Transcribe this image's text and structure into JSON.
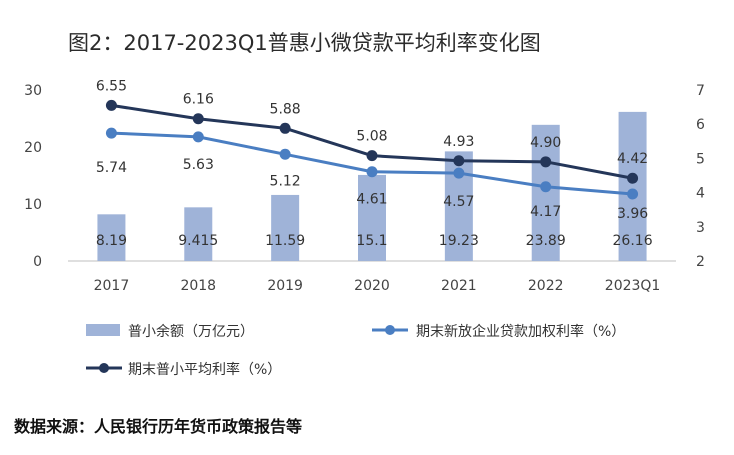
{
  "title": "图2：2017-2023Q1普惠小微贷款平均利率变化图",
  "source": "数据来源：人民银行历年货币政策报告等",
  "chart_data": {
    "type": "bar+line",
    "categories": [
      "2017",
      "2018",
      "2019",
      "2020",
      "2021",
      "2022",
      "2023Q1"
    ],
    "left_axis": {
      "ylim": [
        0,
        30
      ],
      "ticks": [
        "0",
        "10",
        "20",
        "30"
      ]
    },
    "right_axis": {
      "ylim": [
        2,
        7
      ],
      "ticks": [
        "2",
        "3",
        "4",
        "5",
        "6",
        "7"
      ]
    },
    "series": [
      {
        "name": "普小余额（万亿元）",
        "type": "bar",
        "axis": "left",
        "color": "#9fb3d8",
        "values": [
          8.19,
          9.415,
          11.59,
          15.1,
          19.23,
          23.89,
          26.16
        ],
        "labels": [
          "8.19",
          "9.415",
          "11.59",
          "15.1",
          "19.23",
          "23.89",
          "26.16"
        ]
      },
      {
        "name": "期末新放企业贷款加权利率（%）",
        "type": "line",
        "axis": "right",
        "color": "#4a7ec2",
        "values": [
          5.74,
          5.63,
          5.12,
          4.61,
          4.57,
          4.17,
          3.96
        ],
        "labels": [
          "5.74",
          "5.63",
          "5.12",
          "4.61",
          "4.57",
          "4.17",
          "3.96"
        ]
      },
      {
        "name": "期末普小平均利率（%）",
        "type": "line",
        "axis": "right",
        "color": "#243659",
        "values": [
          6.55,
          6.16,
          5.88,
          5.08,
          4.93,
          4.9,
          4.42
        ],
        "labels": [
          "6.55",
          "6.16",
          "5.88",
          "5.08",
          "4.93",
          "4.90",
          "4.42"
        ]
      }
    ],
    "grid": false,
    "legend": "bottom"
  }
}
